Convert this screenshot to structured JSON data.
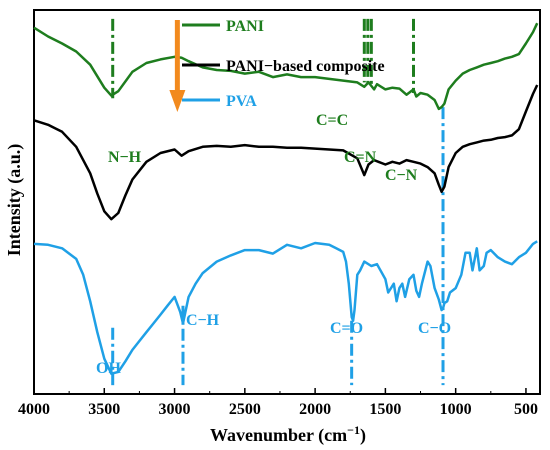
{
  "chart_data": {
    "type": "line",
    "xlabel": "Wavenumber (cm",
    "xlabel_sup": "−1",
    "xlabel_end": ")",
    "ylabel": "Intensity (a.u.)",
    "xlim": [
      4000,
      400
    ],
    "x_ticks": [
      4000,
      3500,
      3000,
      2500,
      2000,
      1500,
      1000,
      500
    ],
    "x_tick_labels": [
      "4000",
      "3500",
      "3000",
      "2500",
      "2000",
      "1500",
      "1000",
      "500"
    ],
    "grid": false,
    "legend_position": "top-right",
    "series": [
      {
        "name": "PANI",
        "color": "#1e7d1e",
        "x": [
          4000,
          3900,
          3800,
          3700,
          3600,
          3500,
          3450,
          3400,
          3300,
          3200,
          3100,
          3000,
          2950,
          2900,
          2800,
          2700,
          2600,
          2500,
          2400,
          2300,
          2200,
          2100,
          2000,
          1900,
          1800,
          1700,
          1650,
          1620,
          1580,
          1560,
          1500,
          1450,
          1400,
          1350,
          1300,
          1280,
          1250,
          1200,
          1150,
          1120,
          1100,
          1080,
          1050,
          1000,
          950,
          900,
          850,
          800,
          750,
          700,
          650,
          600,
          550,
          500,
          450,
          420
        ],
        "values": [
          1.6,
          1.5,
          1.42,
          1.33,
          1.18,
          0.92,
          0.83,
          0.88,
          1.1,
          1.2,
          1.24,
          1.27,
          1.26,
          1.22,
          1.15,
          1.12,
          1.11,
          1.08,
          1.1,
          1.04,
          1.07,
          1.04,
          1.04,
          1.02,
          1.0,
          0.98,
          0.93,
          0.98,
          0.9,
          0.96,
          0.9,
          0.92,
          0.91,
          0.84,
          0.9,
          0.82,
          0.86,
          0.84,
          0.78,
          0.68,
          0.7,
          0.74,
          0.9,
          1.0,
          1.08,
          1.12,
          1.15,
          1.18,
          1.2,
          1.22,
          1.25,
          1.27,
          1.3,
          1.42,
          1.55,
          1.65
        ]
      },
      {
        "name": "PANI−based composite",
        "color": "#000000",
        "x": [
          4000,
          3900,
          3800,
          3700,
          3600,
          3550,
          3500,
          3450,
          3400,
          3350,
          3300,
          3200,
          3100,
          3000,
          2950,
          2900,
          2800,
          2700,
          2600,
          2500,
          2400,
          2300,
          2200,
          2100,
          2000,
          1900,
          1800,
          1700,
          1650,
          1620,
          1580,
          1550,
          1500,
          1450,
          1400,
          1350,
          1300,
          1250,
          1200,
          1150,
          1120,
          1100,
          1080,
          1050,
          1000,
          950,
          900,
          850,
          800,
          750,
          700,
          650,
          600,
          550,
          500,
          450,
          420
        ],
        "values": [
          0.55,
          0.5,
          0.42,
          0.25,
          -0.05,
          -0.28,
          -0.48,
          -0.57,
          -0.5,
          -0.3,
          -0.12,
          0.08,
          0.18,
          0.22,
          0.15,
          0.2,
          0.25,
          0.26,
          0.25,
          0.27,
          0.25,
          0.25,
          0.24,
          0.24,
          0.23,
          0.22,
          0.21,
          0.12,
          -0.07,
          0.05,
          0.1,
          0.08,
          0.05,
          0.08,
          0.06,
          0.1,
          0.08,
          0.06,
          0.02,
          -0.05,
          -0.18,
          -0.26,
          -0.2,
          0.02,
          0.18,
          0.25,
          0.28,
          0.3,
          0.32,
          0.33,
          0.35,
          0.36,
          0.38,
          0.45,
          0.65,
          0.85,
          0.95
        ]
      },
      {
        "name": "PVA",
        "color": "#1fa0e6",
        "x": [
          4000,
          3900,
          3800,
          3700,
          3650,
          3600,
          3550,
          3500,
          3450,
          3400,
          3350,
          3300,
          3250,
          3200,
          3150,
          3100,
          3050,
          3000,
          2960,
          2940,
          2920,
          2900,
          2850,
          2800,
          2700,
          2600,
          2500,
          2400,
          2300,
          2200,
          2100,
          2000,
          1900,
          1850,
          1800,
          1780,
          1760,
          1740,
          1730,
          1720,
          1700,
          1680,
          1650,
          1600,
          1560,
          1500,
          1480,
          1440,
          1420,
          1400,
          1380,
          1360,
          1330,
          1300,
          1280,
          1260,
          1240,
          1200,
          1180,
          1150,
          1120,
          1100,
          1090,
          1080,
          1060,
          1040,
          1000,
          960,
          930,
          900,
          880,
          850,
          830,
          800,
          780,
          750,
          700,
          650,
          600,
          550,
          500,
          450,
          420
        ],
        "values": [
          -0.85,
          -0.86,
          -0.9,
          -1.02,
          -1.2,
          -1.5,
          -1.85,
          -2.15,
          -2.32,
          -2.3,
          -2.18,
          -2.05,
          -1.95,
          -1.85,
          -1.75,
          -1.65,
          -1.55,
          -1.45,
          -1.62,
          -1.75,
          -1.6,
          -1.45,
          -1.3,
          -1.18,
          -1.05,
          -0.98,
          -0.92,
          -0.92,
          -0.96,
          -0.86,
          -0.9,
          -0.84,
          -0.86,
          -0.9,
          -0.94,
          -1.05,
          -1.3,
          -1.68,
          -1.72,
          -1.6,
          -1.2,
          -1.15,
          -1.05,
          -1.1,
          -1.08,
          -1.25,
          -1.4,
          -1.3,
          -1.5,
          -1.35,
          -1.3,
          -1.45,
          -1.25,
          -1.2,
          -1.38,
          -1.45,
          -1.3,
          -1.05,
          -1.1,
          -1.35,
          -1.48,
          -1.6,
          -1.58,
          -1.52,
          -1.5,
          -1.4,
          -1.35,
          -1.2,
          -0.95,
          -0.95,
          -1.15,
          -0.9,
          -1.15,
          -1.1,
          -0.95,
          -0.92,
          -1.0,
          -1.05,
          -1.08,
          -1.0,
          -0.95,
          -0.85,
          -0.82
        ]
      }
    ],
    "marker_lines": [
      {
        "x": 3440,
        "color": "#1e7d1e",
        "from": 1.7,
        "to": 0.8
      },
      {
        "x": 1650,
        "color": "#1e7d1e",
        "from": 1.7,
        "to": 0.98
      },
      {
        "x": 1625,
        "color": "#1e7d1e",
        "from": 1.7,
        "to": 0.93
      },
      {
        "x": 1600,
        "color": "#1e7d1e",
        "from": 1.7,
        "to": 0.93
      },
      {
        "x": 1300,
        "color": "#1e7d1e",
        "from": 1.7,
        "to": 0.86
      },
      {
        "x": 3440,
        "color": "#1fa0e6",
        "from": -1.8,
        "to": -2.45
      },
      {
        "x": 2940,
        "color": "#1fa0e6",
        "from": -1.55,
        "to": -2.45
      },
      {
        "x": 1740,
        "color": "#1fa0e6",
        "from": -1.72,
        "to": -2.45
      },
      {
        "x": 1090,
        "color": "#1fa0e6",
        "from": 0.7,
        "to": -2.45
      }
    ],
    "arrow": {
      "x": 2980,
      "color": "#f28a1e"
    },
    "annotations": [
      {
        "text": "N−H",
        "color": "#1e7d1e"
      },
      {
        "text": "C=C",
        "color": "#1e7d1e"
      },
      {
        "text": "C=N",
        "color": "#1e7d1e"
      },
      {
        "text": "C−N",
        "color": "#1e7d1e"
      },
      {
        "text": "OH",
        "color": "#1fa0e6"
      },
      {
        "text": "C−H",
        "color": "#1fa0e6"
      },
      {
        "text": "C=O",
        "color": "#1fa0e6"
      },
      {
        "text": "C−O",
        "color": "#1fa0e6"
      }
    ]
  }
}
